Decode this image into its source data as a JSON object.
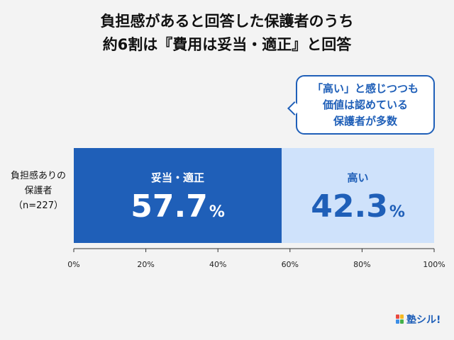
{
  "title": {
    "line1": "負担感があると回答した保護者のうち",
    "line2": "約6割は『費用は妥当・適正』と回答"
  },
  "callout": {
    "line1": "「高い」と感じつつも",
    "line2": "価値は認めている",
    "line3": "保護者が多数"
  },
  "category_label": {
    "line1": "負担感ありの",
    "line2": "保護者",
    "line3": "（n=227）"
  },
  "logo": {
    "text": "塾シル!"
  },
  "colors": {
    "dark_blue": "#1f5fb8",
    "light_blue": "#cfe2fb",
    "callout_border": "#1f5fb8"
  },
  "chart_data": {
    "type": "bar",
    "orientation": "horizontal-stacked",
    "categories": [
      "負担感ありの保護者（n=227）"
    ],
    "series": [
      {
        "name": "妥当・適正",
        "values": [
          57.7
        ],
        "label": "57.7",
        "unit": "%",
        "color": "#1f5fb8"
      },
      {
        "name": "高い",
        "values": [
          42.3
        ],
        "label": "42.3",
        "unit": "%",
        "color": "#cfe2fb"
      }
    ],
    "xlim": [
      0,
      100
    ],
    "ticks": [
      "0%",
      "20%",
      "40%",
      "60%",
      "80%",
      "100%"
    ]
  }
}
